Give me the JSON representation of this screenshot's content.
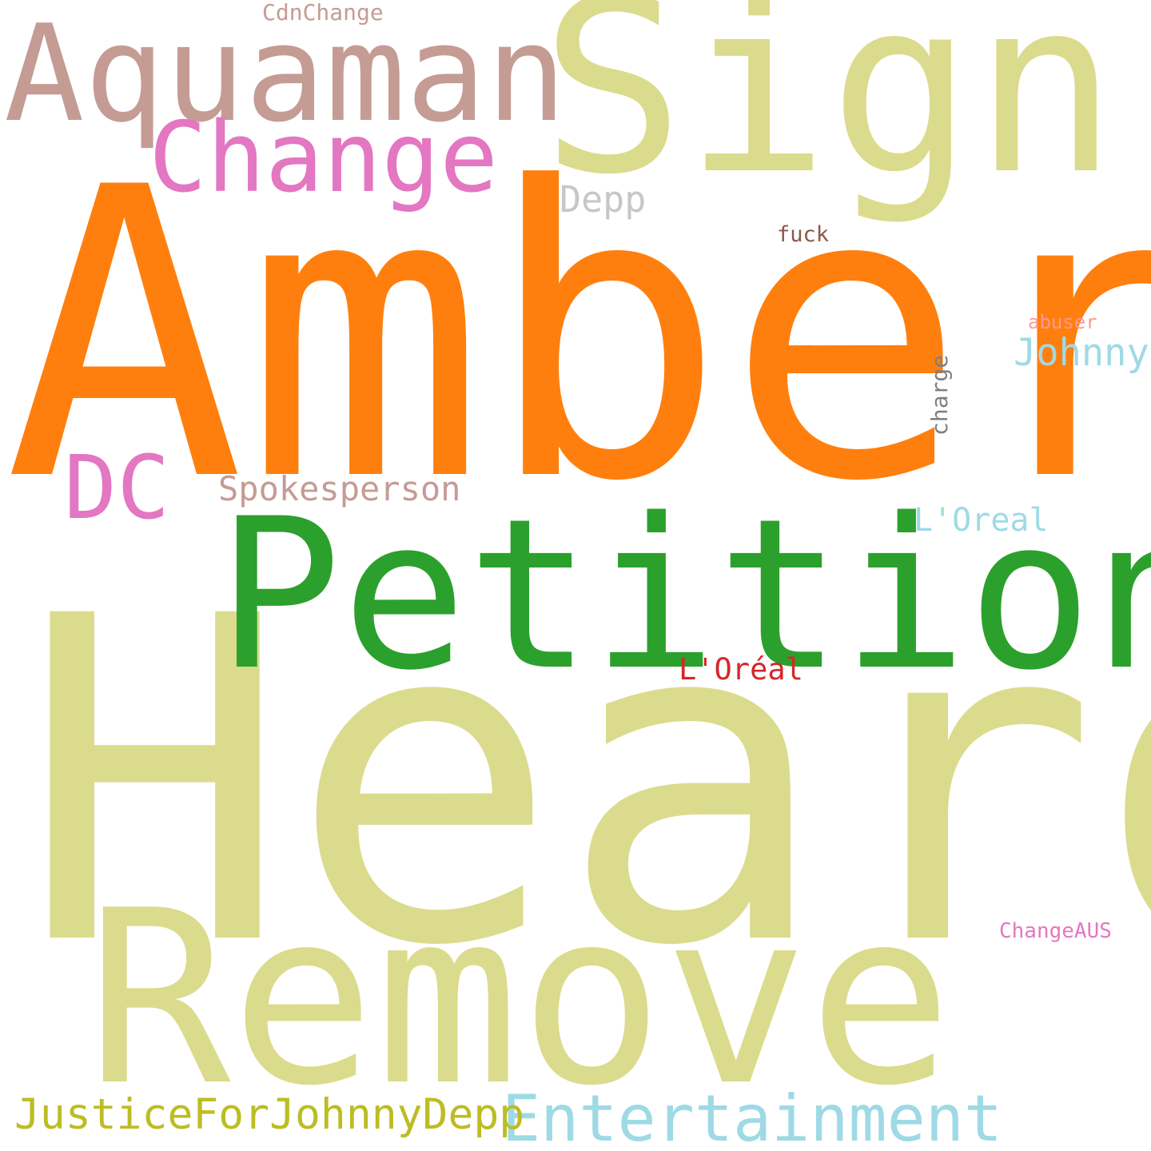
{
  "background_color": "#ffffff",
  "words": {
    "heard": {
      "text": "Heard",
      "color": "#dbdb8d"
    },
    "amber": {
      "text": "Amber",
      "color": "#ff7f0e"
    },
    "remove": {
      "text": "Remove",
      "color": "#dbdb8d"
    },
    "petition": {
      "text": "Petition",
      "color": "#2ca02c"
    },
    "sign": {
      "text": "Sign",
      "color": "#dbdb8d"
    },
    "aquaman": {
      "text": "Aquaman",
      "color": "#c49c94"
    },
    "change": {
      "text": "Change",
      "color": "#e377c2"
    },
    "dc": {
      "text": "DC",
      "color": "#e377c2"
    },
    "entertainment": {
      "text": "Entertainment",
      "color": "#9edae5"
    },
    "justice": {
      "text": "JusticeForJohnnyDepp",
      "color": "#bcbd22"
    },
    "johnny": {
      "text": "Johnny",
      "color": "#9edae5"
    },
    "depp": {
      "text": "Depp",
      "color": "#c7c7c7"
    },
    "spokesperson": {
      "text": "Spokesperson",
      "color": "#c49c94"
    },
    "loreal": {
      "text": "L'Oreal",
      "color": "#9edae5"
    },
    "loreal_accent": {
      "text": "L'Oréal",
      "color": "#d62728"
    },
    "cdnchange": {
      "text": "CdnChange",
      "color": "#c49c94"
    },
    "fuck": {
      "text": "fuck",
      "color": "#8c564b"
    },
    "abuser": {
      "text": "abuser",
      "color": "#ff9896"
    },
    "changeaus": {
      "text": "ChangeAUS",
      "color": "#e377c2"
    },
    "charge": {
      "text": "charge",
      "color": "#7f7f7f",
      "orientation": "vertical"
    }
  }
}
